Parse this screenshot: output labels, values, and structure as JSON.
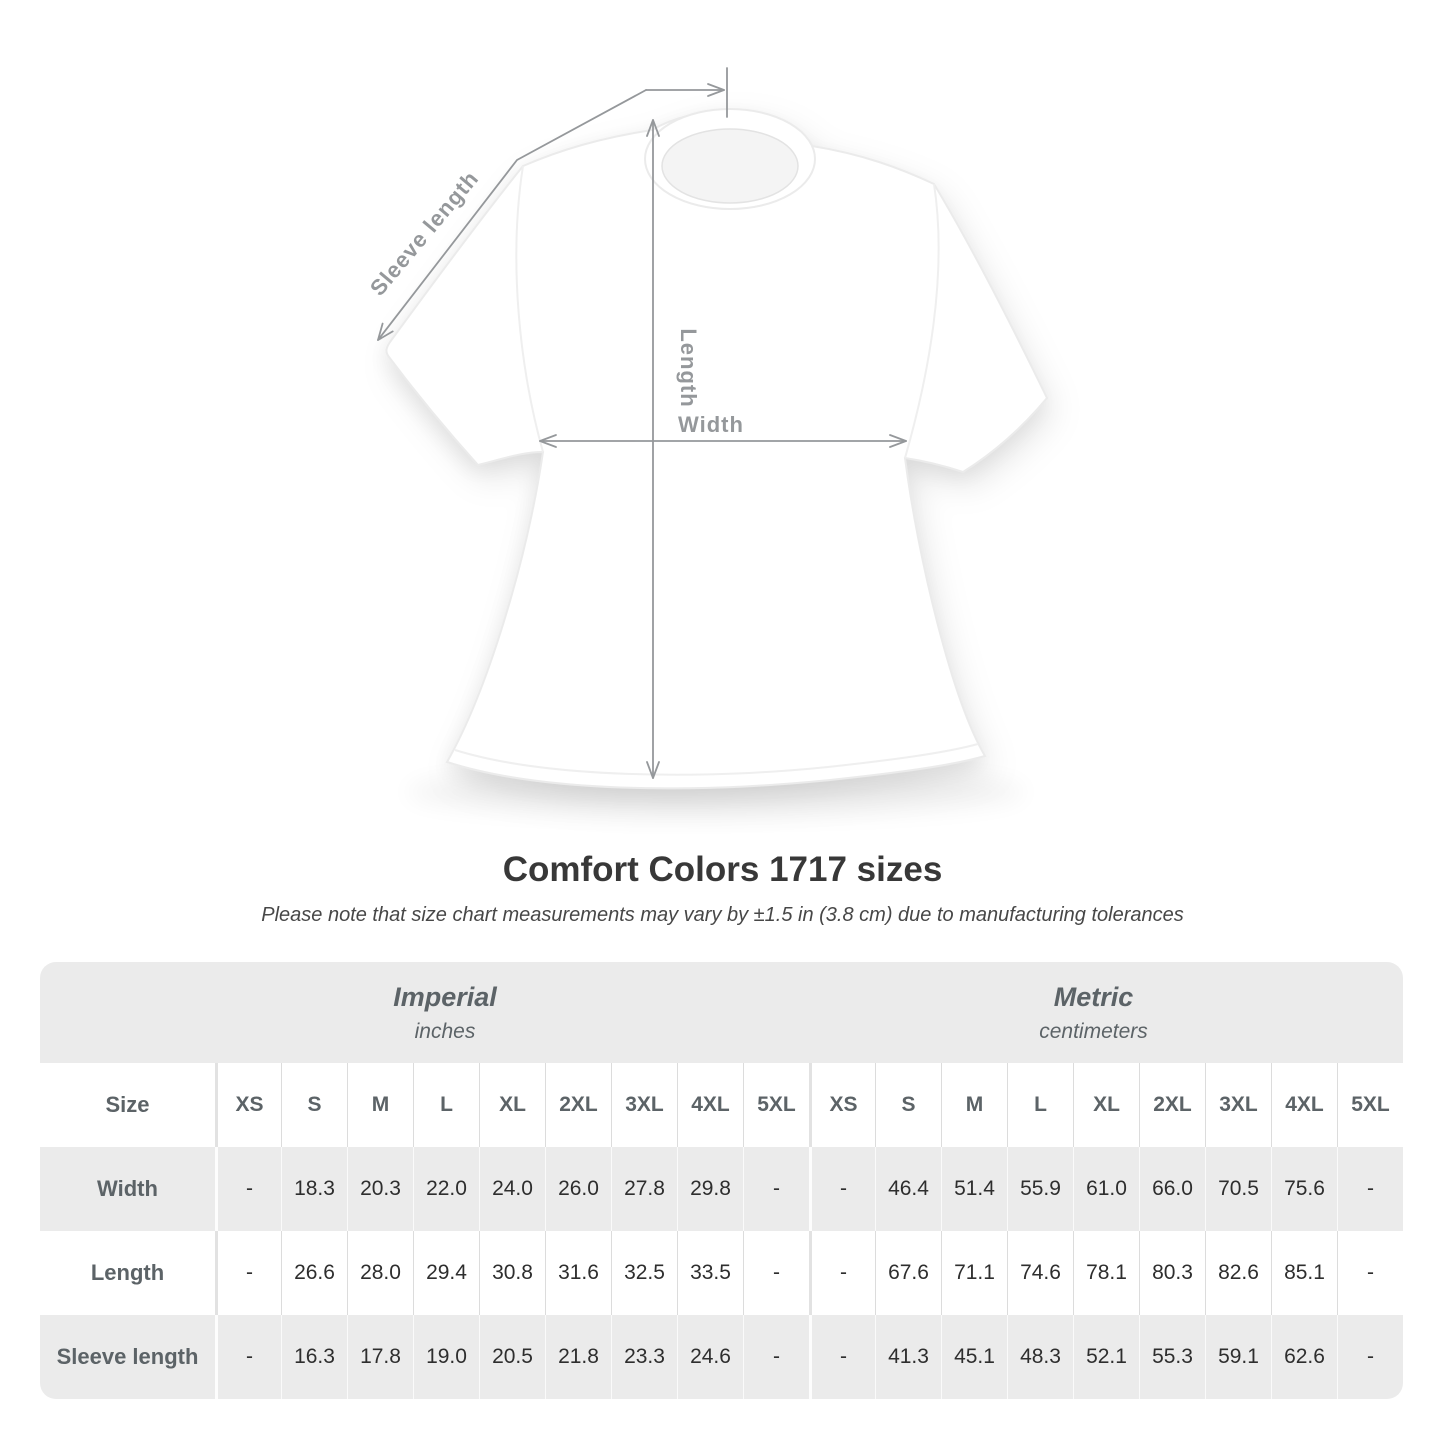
{
  "theme": {
    "annotation": "#95989b",
    "title_text": "#383838",
    "subtitle_text": "#474747",
    "header_text": "#5c6367",
    "value_text": "#2e2e2e",
    "row_gray": "#ebebeb"
  },
  "figure": {
    "sleeve_label": "Sleeve length",
    "length_label": "Length",
    "width_label": "Width"
  },
  "title": "Comfort Colors 1717 sizes",
  "subtitle": "Please note that size chart measurements may vary by ±1.5 in (3.8 cm) due to manufacturing tolerances",
  "table": {
    "size_header_label": "Size",
    "groups": [
      {
        "name": "Imperial",
        "unit": "inches"
      },
      {
        "name": "Metric",
        "unit": "centimeters"
      }
    ],
    "sizes": [
      "XS",
      "S",
      "M",
      "L",
      "XL",
      "2XL",
      "3XL",
      "4XL",
      "5XL"
    ],
    "rows": [
      {
        "label": "Width",
        "imperial": [
          "-",
          "18.3",
          "20.3",
          "22.0",
          "24.0",
          "26.0",
          "27.8",
          "29.8",
          "-"
        ],
        "metric": [
          "-",
          "46.4",
          "51.4",
          "55.9",
          "61.0",
          "66.0",
          "70.5",
          "75.6",
          "-"
        ]
      },
      {
        "label": "Length",
        "imperial": [
          "-",
          "26.6",
          "28.0",
          "29.4",
          "30.8",
          "31.6",
          "32.5",
          "33.5",
          "-"
        ],
        "metric": [
          "-",
          "67.6",
          "71.1",
          "74.6",
          "78.1",
          "80.3",
          "82.6",
          "85.1",
          "-"
        ]
      },
      {
        "label": "Sleeve length",
        "imperial": [
          "-",
          "16.3",
          "17.8",
          "19.0",
          "20.5",
          "21.8",
          "23.3",
          "24.6",
          "-"
        ],
        "metric": [
          "-",
          "41.3",
          "45.1",
          "48.3",
          "52.1",
          "55.3",
          "59.1",
          "62.6",
          "-"
        ]
      }
    ]
  },
  "chart_data": {
    "type": "table",
    "title": "Comfort Colors 1717 sizes",
    "note": "Please note that size chart measurements may vary by ±1.5 in (3.8 cm) due to manufacturing tolerances",
    "column_groups": [
      "Imperial (inches)",
      "Metric (centimeters)"
    ],
    "columns": [
      "XS",
      "S",
      "M",
      "L",
      "XL",
      "2XL",
      "3XL",
      "4XL",
      "5XL"
    ],
    "rows": [
      {
        "label": "Width",
        "imperial": [
          null,
          18.3,
          20.3,
          22.0,
          24.0,
          26.0,
          27.8,
          29.8,
          null
        ],
        "metric": [
          null,
          46.4,
          51.4,
          55.9,
          61.0,
          66.0,
          70.5,
          75.6,
          null
        ]
      },
      {
        "label": "Length",
        "imperial": [
          null,
          26.6,
          28.0,
          29.4,
          30.8,
          31.6,
          32.5,
          33.5,
          null
        ],
        "metric": [
          null,
          67.6,
          71.1,
          74.6,
          78.1,
          80.3,
          82.6,
          85.1,
          null
        ]
      },
      {
        "label": "Sleeve length",
        "imperial": [
          null,
          16.3,
          17.8,
          19.0,
          20.5,
          21.8,
          23.3,
          24.6,
          null
        ],
        "metric": [
          null,
          41.3,
          45.1,
          48.3,
          52.1,
          55.3,
          59.1,
          62.6,
          null
        ]
      }
    ]
  }
}
